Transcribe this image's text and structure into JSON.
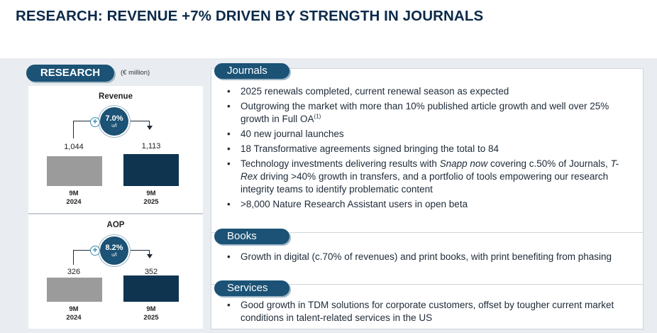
{
  "page_title": "RESEARCH: REVENUE +7% DRIVEN BY STRENGTH IN JOURNALS",
  "left": {
    "badge": "RESEARCH",
    "unit": "(€ million)",
    "revenue": {
      "title": "Revenue",
      "growth": "7.0%",
      "growth_unit": "u/l",
      "val_2024": "1,044",
      "val_2025": "1,113",
      "label_2024": "9M\n2024",
      "label_2025": "9M\n2025"
    },
    "aop": {
      "title": "AOP",
      "growth": "8.2%",
      "growth_unit": "u/l",
      "val_2024": "326",
      "val_2025": "352",
      "label_2024": "9M\n2024",
      "label_2025": "9M\n2025"
    }
  },
  "chart_data": [
    {
      "type": "bar",
      "title": "Revenue",
      "categories": [
        "9M 2024",
        "9M 2025"
      ],
      "values": [
        1044,
        1113
      ],
      "annotation": "+7.0% u/l"
    },
    {
      "type": "bar",
      "title": "AOP",
      "categories": [
        "9M 2024",
        "9M 2025"
      ],
      "values": [
        326,
        352
      ],
      "annotation": "+8.2% u/l"
    }
  ],
  "sections": {
    "journals": {
      "heading": "Journals",
      "b1": "2025 renewals completed, current renewal season as expected",
      "b2_text": "Outgrowing the market with more than 10% published article growth and well over 25% growth in Full OA",
      "b2_sup": "(1)",
      "b3": "40 new journal launches",
      "b4": "18 Transformative agreements signed bringing the total to 84",
      "b5_a": "Technology investments delivering results with ",
      "b5_em1": "Snapp now",
      "b5_b": " covering c.50% of Journals, ",
      "b5_em2": "T-Rex",
      "b5_c": " driving >40% growth in transfers, and a portfolio of tools empowering our research integrity teams to identify problematic content",
      "b6": ">8,000 Nature Research Assistant users in open beta"
    },
    "books": {
      "heading": "Books",
      "b1": "Growth in digital (c.70% of revenues) and print books, with print benefiting from phasing"
    },
    "services": {
      "heading": "Services",
      "b1": "Good growth in TDM solutions for corporate customers, offset by tougher current market conditions in talent-related services in the US"
    }
  }
}
